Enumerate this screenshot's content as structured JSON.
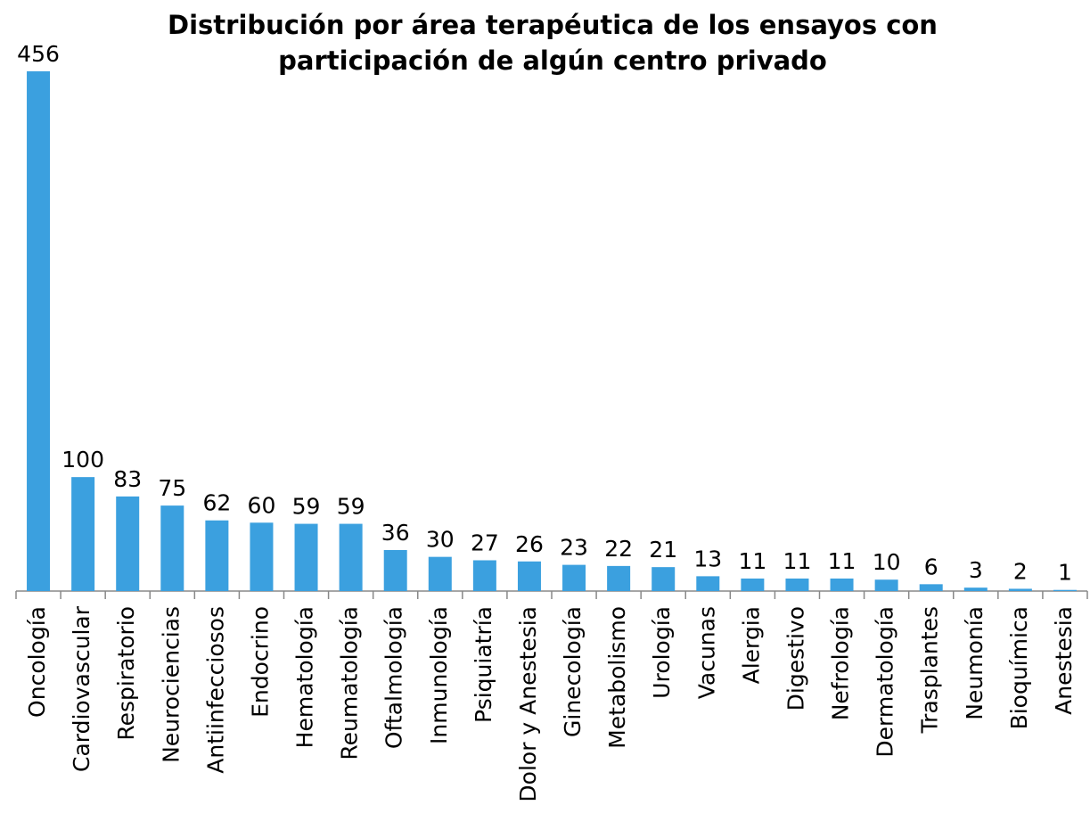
{
  "chart_data": {
    "type": "bar",
    "title": "Distribución por área terapéutica de los ensayos con participación de algún centro privado",
    "categories": [
      "Oncología",
      "Cardiovascular",
      "Respiratorio",
      "Neurociencias",
      "Antiinfecciosos",
      "Endocrino",
      "Hematología",
      "Reumatología",
      "Oftalmología",
      "Inmunología",
      "Psiquiatría",
      "Dolor y Anestesia",
      "Ginecología",
      "Metabolismo",
      "Urología",
      "Vacunas",
      "Alergia",
      "Digestivo",
      "Nefrología",
      "Dermatología",
      "Trasplantes",
      "Neumonía",
      "Bioquímica",
      "Anestesia"
    ],
    "values": [
      456,
      100,
      83,
      75,
      62,
      60,
      59,
      59,
      36,
      30,
      27,
      26,
      23,
      22,
      21,
      13,
      11,
      11,
      11,
      10,
      6,
      3,
      2,
      1
    ],
    "color": "#3ba0df"
  }
}
